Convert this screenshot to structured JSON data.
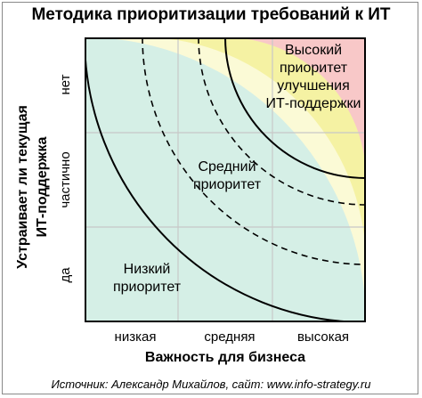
{
  "title": "Методика приоритизации требований к ИТ",
  "y_axis": {
    "label_line1": "Устраивает ли текущая",
    "label_line2": "ИТ-поддержка",
    "ticks": [
      "нет",
      "частично",
      "да"
    ]
  },
  "x_axis": {
    "label": "Важность для бизнеса",
    "ticks": [
      "низкая",
      "средняя",
      "высокая"
    ]
  },
  "zones": {
    "high": "Высокий\nприоритет\nулучшения\nИТ-поддержки",
    "medium": "Средний\nприоритет",
    "low": "Низкий\nприоритет"
  },
  "colors": {
    "high": "#f8c8c8",
    "medium": "#f5f2a3",
    "light": "#fbfad6",
    "low": "#d5efe6"
  },
  "source": "Источник: Александр Михайлов, сайт: www.info-strategy.ru"
}
